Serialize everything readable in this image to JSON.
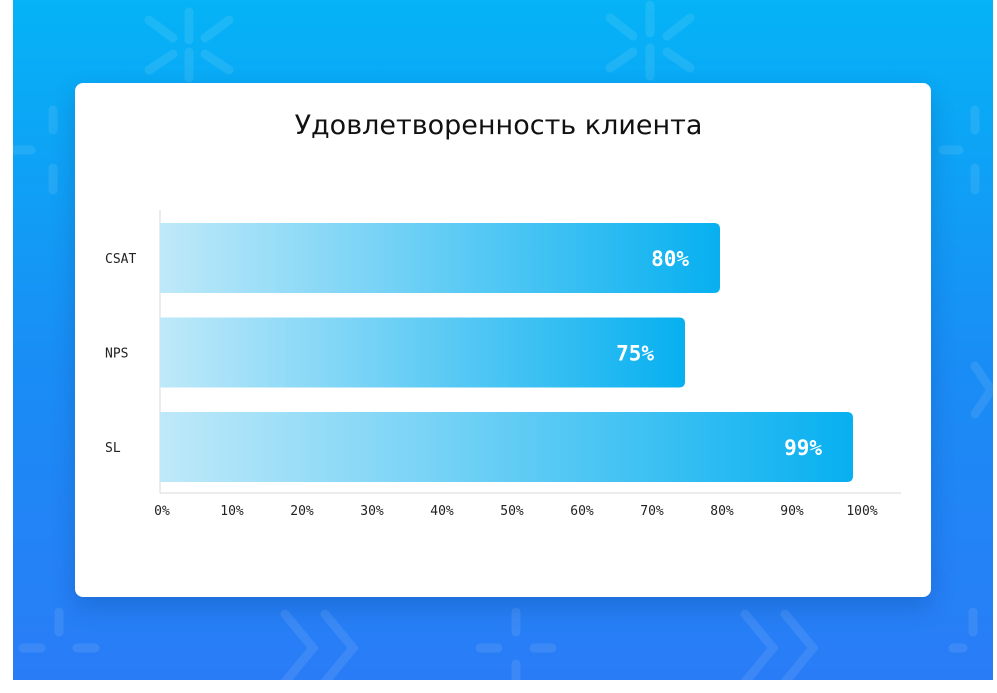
{
  "colors": {
    "background_top": "#05b3f6",
    "background_bottom": "#2a7cf6",
    "bar_start": "#bfe9f9",
    "bar_end": "#07b0f0"
  },
  "chart_data": {
    "type": "bar",
    "orientation": "horizontal",
    "title": "Удовлетворенность клиента",
    "categories": [
      "CSAT",
      "NPS",
      "SL"
    ],
    "values": [
      80,
      75,
      99
    ],
    "value_labels": [
      "80%",
      "75%",
      "99%"
    ],
    "xlim": [
      0,
      100
    ],
    "x_ticks": [
      "0%",
      "10%",
      "20%",
      "30%",
      "40%",
      "50%",
      "60%",
      "70%",
      "80%",
      "90%",
      "100%"
    ],
    "grid": false,
    "legend": "none"
  }
}
